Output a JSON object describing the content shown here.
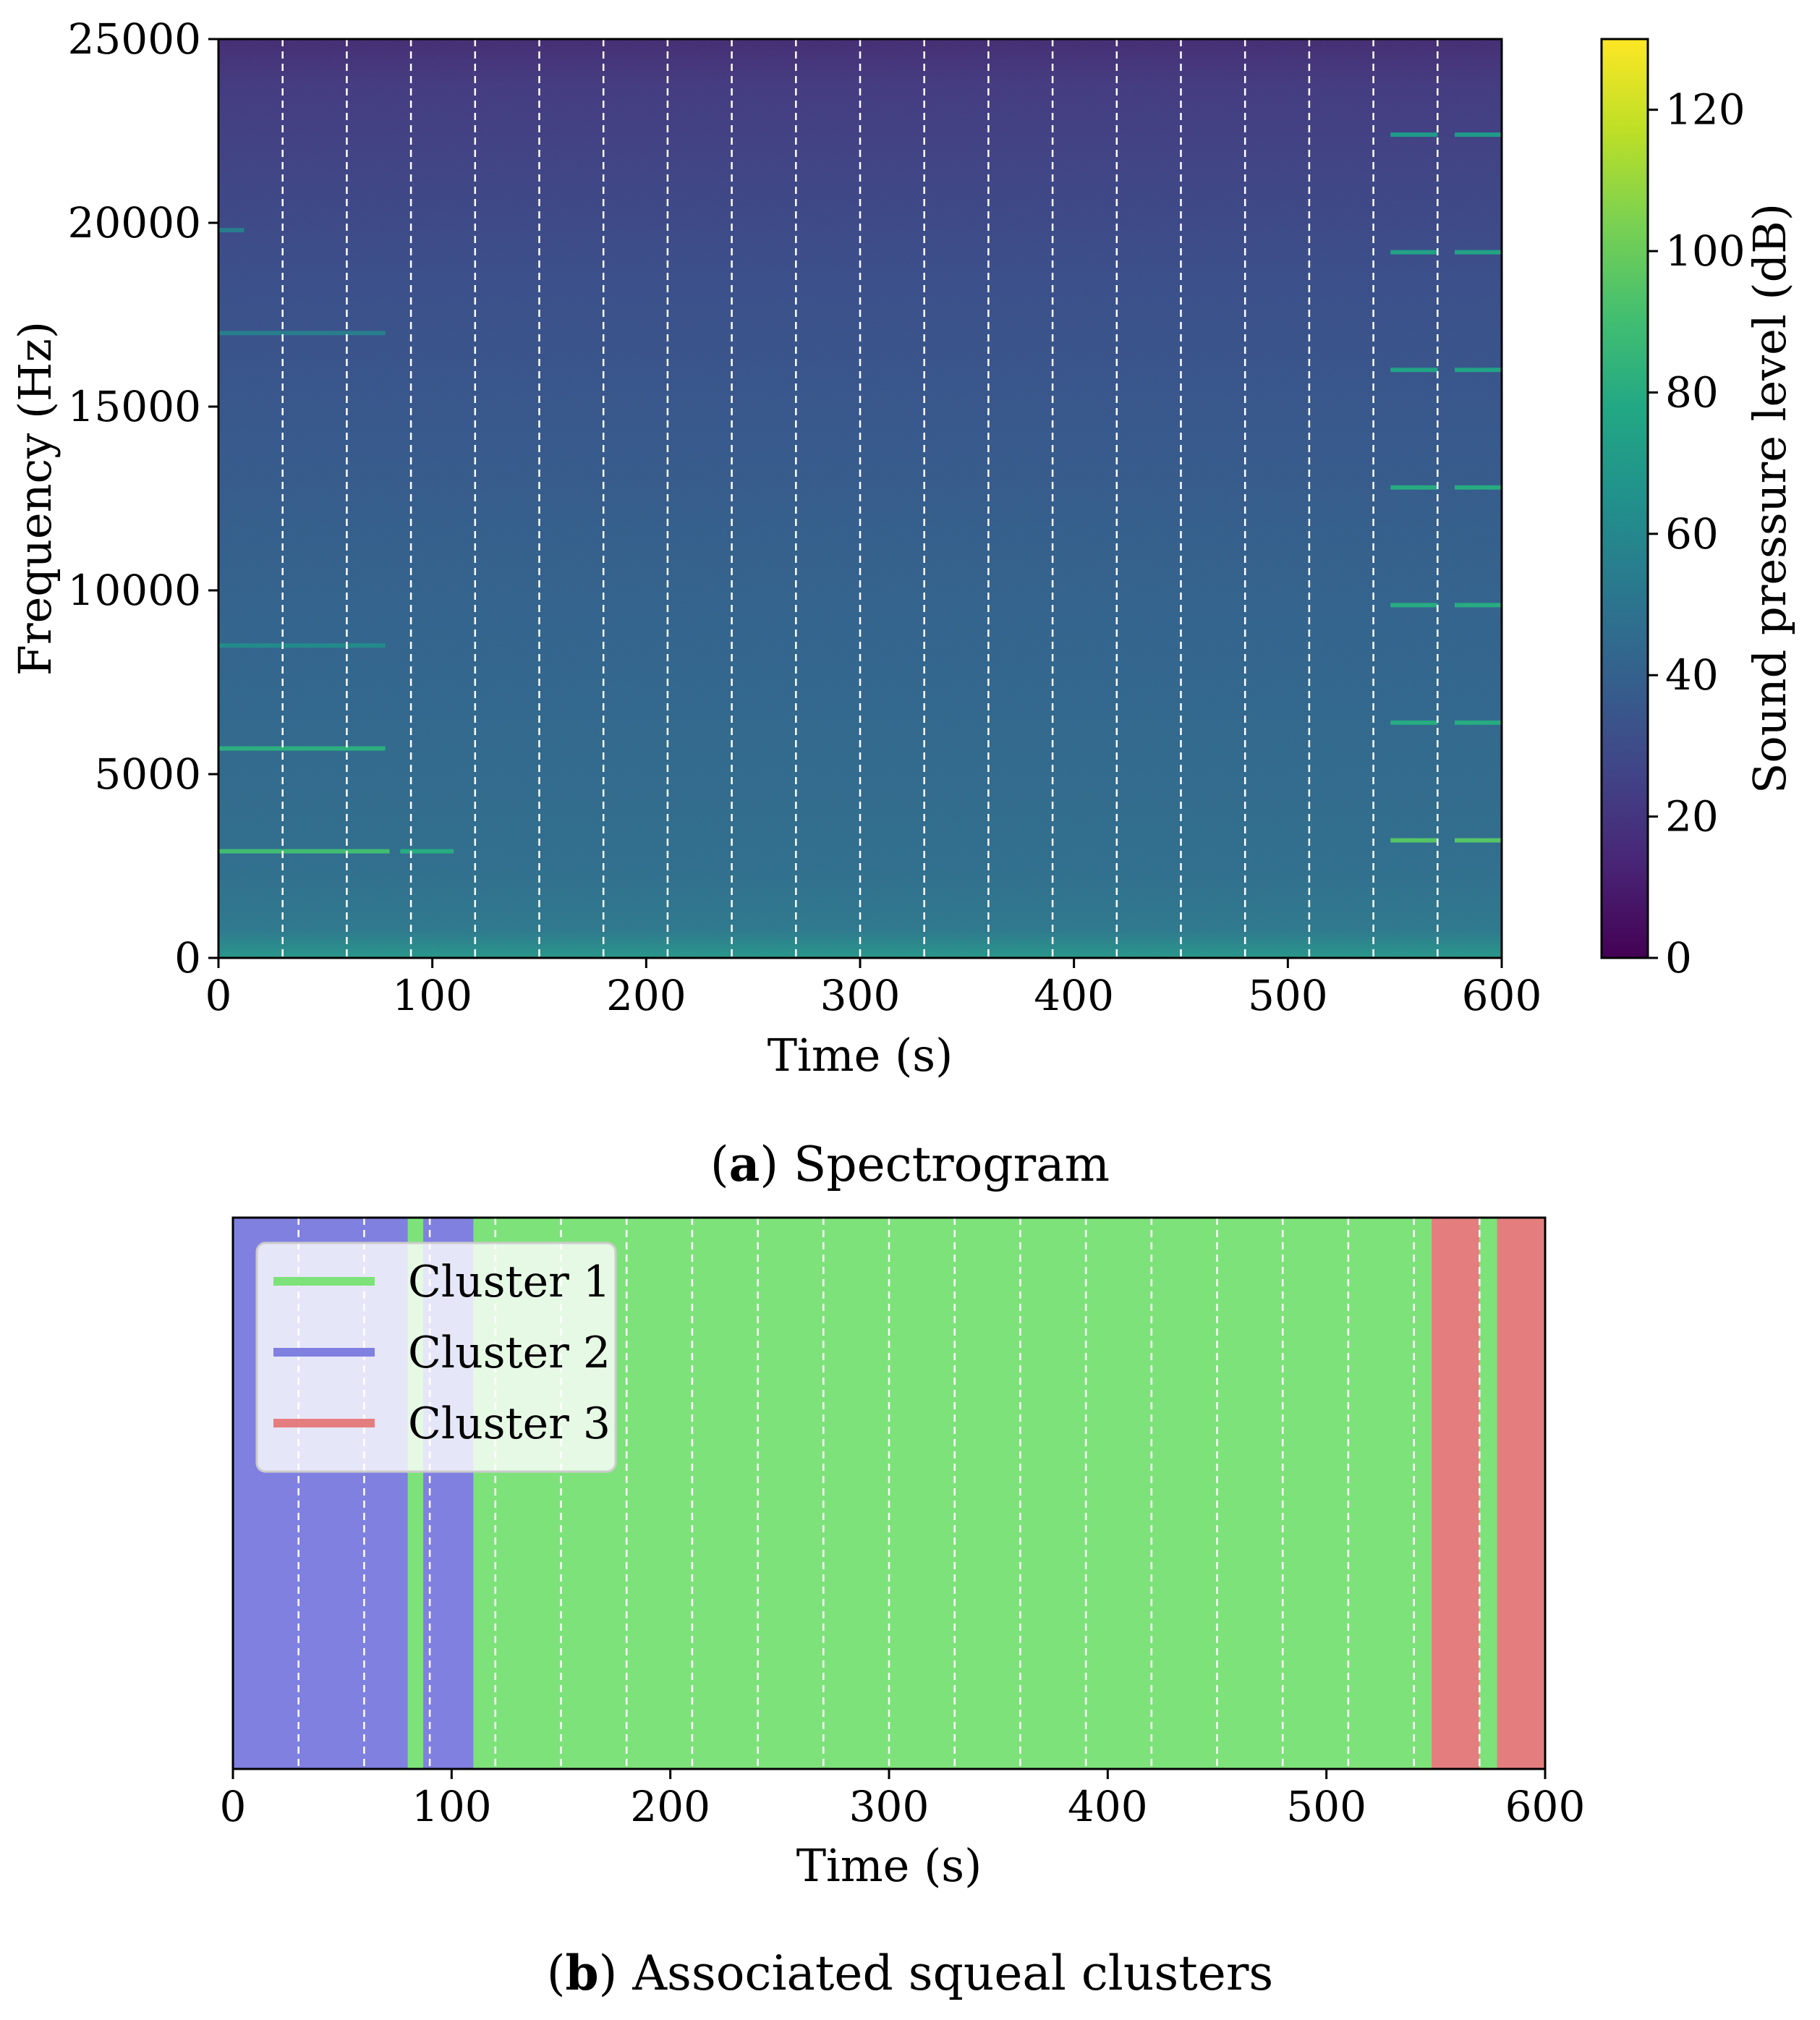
{
  "chart_data": [
    {
      "id": "a",
      "type": "heatmap",
      "caption_letter": "a",
      "caption_text": "Spectrogram",
      "xlabel": "Time (s)",
      "ylabel": "Frequency (Hz)",
      "xlim": [
        0,
        600
      ],
      "ylim": [
        0,
        25000
      ],
      "xticks": [
        0,
        100,
        200,
        300,
        400,
        500,
        600
      ],
      "yticks": [
        0,
        5000,
        10000,
        15000,
        20000,
        25000
      ],
      "dashed_lines_x": [
        30,
        60,
        90,
        120,
        150,
        180,
        210,
        240,
        270,
        300,
        330,
        360,
        390,
        420,
        450,
        480,
        510,
        540,
        570
      ],
      "colorbar": {
        "label": "Sound pressure level (dB)",
        "range": [
          0,
          130
        ],
        "ticks": [
          0,
          20,
          40,
          60,
          80,
          100,
          120
        ],
        "colormap": "viridis"
      },
      "background_level_db": 35,
      "tonal_lines": [
        {
          "t_start": 0,
          "t_end": 80,
          "freq": 2900,
          "level_db": 90
        },
        {
          "t_start": 85,
          "t_end": 110,
          "freq": 2900,
          "level_db": 80
        },
        {
          "t_start": 0,
          "t_end": 78,
          "freq": 5700,
          "level_db": 82
        },
        {
          "t_start": 0,
          "t_end": 78,
          "freq": 8500,
          "level_db": 62
        },
        {
          "t_start": 0,
          "t_end": 78,
          "freq": 17000,
          "level_db": 55
        },
        {
          "t_start": 0,
          "t_end": 12,
          "freq": 19800,
          "level_db": 55
        },
        {
          "t_start": 548,
          "t_end": 570,
          "freq": 3200,
          "level_db": 95
        },
        {
          "t_start": 548,
          "t_end": 570,
          "freq": 6400,
          "level_db": 80
        },
        {
          "t_start": 548,
          "t_end": 570,
          "freq": 9600,
          "level_db": 80
        },
        {
          "t_start": 548,
          "t_end": 570,
          "freq": 12800,
          "level_db": 80
        },
        {
          "t_start": 548,
          "t_end": 570,
          "freq": 16000,
          "level_db": 75
        },
        {
          "t_start": 548,
          "t_end": 570,
          "freq": 19200,
          "level_db": 75
        },
        {
          "t_start": 548,
          "t_end": 570,
          "freq": 22400,
          "level_db": 70
        },
        {
          "t_start": 578,
          "t_end": 600,
          "freq": 3200,
          "level_db": 95
        },
        {
          "t_start": 578,
          "t_end": 600,
          "freq": 6400,
          "level_db": 80
        },
        {
          "t_start": 578,
          "t_end": 600,
          "freq": 9600,
          "level_db": 80
        },
        {
          "t_start": 578,
          "t_end": 600,
          "freq": 12800,
          "level_db": 80
        },
        {
          "t_start": 578,
          "t_end": 600,
          "freq": 16000,
          "level_db": 75
        },
        {
          "t_start": 578,
          "t_end": 600,
          "freq": 19200,
          "level_db": 75
        },
        {
          "t_start": 578,
          "t_end": 600,
          "freq": 22400,
          "level_db": 70
        }
      ]
    },
    {
      "id": "b",
      "type": "bar",
      "caption_letter": "b",
      "caption_text": "Associated squeal clusters",
      "xlabel": "Time (s)",
      "xlim": [
        0,
        600
      ],
      "xticks": [
        0,
        100,
        200,
        300,
        400,
        500,
        600
      ],
      "dashed_lines_x": [
        30,
        60,
        90,
        120,
        150,
        180,
        210,
        240,
        270,
        300,
        330,
        360,
        390,
        420,
        450,
        480,
        510,
        540,
        570
      ],
      "legend_position": "upper-left",
      "clusters": [
        {
          "name": "Cluster 1",
          "color": "#7ee27a"
        },
        {
          "name": "Cluster 2",
          "color": "#8080e0"
        },
        {
          "name": "Cluster 3",
          "color": "#e47e7e"
        }
      ],
      "segments": [
        {
          "t_start": 0,
          "t_end": 80,
          "cluster": 2
        },
        {
          "t_start": 80,
          "t_end": 87,
          "cluster": 1
        },
        {
          "t_start": 87,
          "t_end": 110,
          "cluster": 2
        },
        {
          "t_start": 110,
          "t_end": 548,
          "cluster": 1
        },
        {
          "t_start": 548,
          "t_end": 570,
          "cluster": 3
        },
        {
          "t_start": 570,
          "t_end": 578,
          "cluster": 1
        },
        {
          "t_start": 578,
          "t_end": 600,
          "cluster": 3
        }
      ]
    }
  ]
}
